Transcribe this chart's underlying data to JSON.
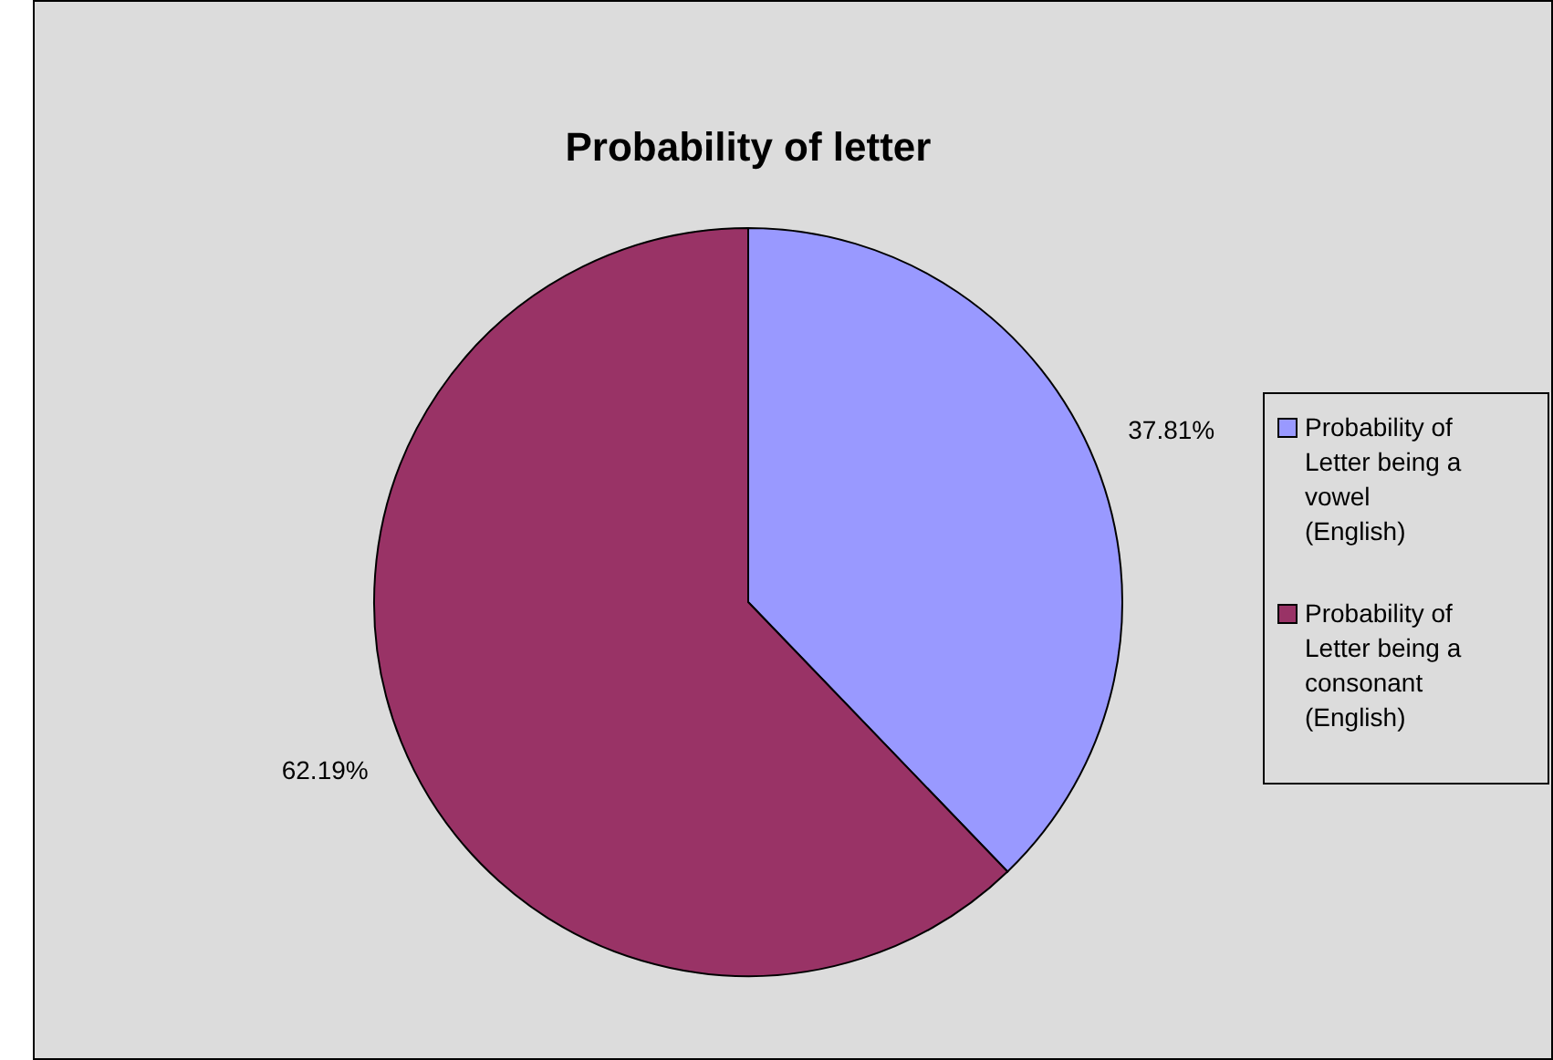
{
  "chart_data": {
    "type": "pie",
    "title": "Probability of  letter",
    "categories": [
      "Probability of Letter being a vowel (English)",
      "Probability of Letter being a consonant (English)"
    ],
    "values": [
      37.81,
      62.19
    ],
    "colors": [
      "#9999ff",
      "#993366"
    ],
    "value_labels": [
      "37.81%",
      "62.19%"
    ],
    "legend": "right"
  }
}
